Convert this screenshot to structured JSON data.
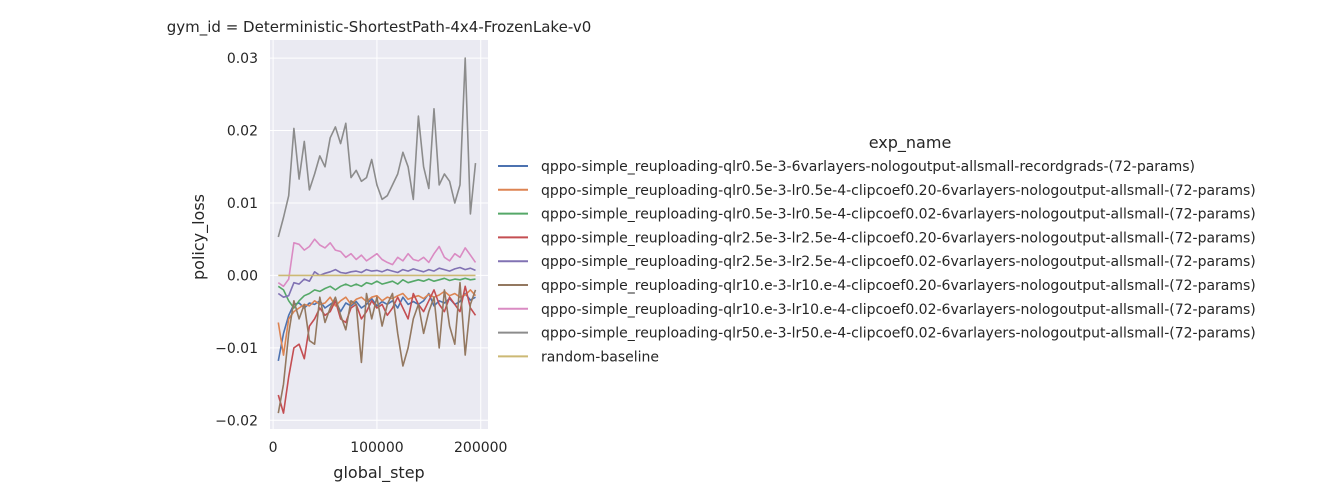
{
  "chart_data": {
    "type": "line",
    "title": "gym_id = Deterministic-ShortestPath-4x4-FrozenLake-v0",
    "xlabel": "global_step",
    "ylabel": "policy_loss",
    "xlim": [
      -3000,
      207000
    ],
    "ylim": [
      -0.0212,
      0.0325
    ],
    "xticks": [
      0,
      100000,
      200000
    ],
    "xtick_labels": [
      "0",
      "100000",
      "200000"
    ],
    "yticks": [
      -0.02,
      -0.01,
      0.0,
      0.01,
      0.02,
      0.03
    ],
    "ytick_labels": [
      "−0.02",
      "−0.01",
      "0.00",
      "0.01",
      "0.02",
      "0.03"
    ],
    "grid": true,
    "legend": {
      "title": "exp_name",
      "placement": "right"
    },
    "x": [
      5000,
      10000,
      15000,
      20000,
      25000,
      30000,
      35000,
      40000,
      45000,
      50000,
      55000,
      60000,
      65000,
      70000,
      75000,
      80000,
      85000,
      90000,
      95000,
      100000,
      105000,
      110000,
      115000,
      120000,
      125000,
      130000,
      135000,
      140000,
      145000,
      150000,
      155000,
      160000,
      165000,
      170000,
      175000,
      180000,
      185000,
      190000,
      195000
    ],
    "series": [
      {
        "name": "qppo-simple_reuploading-qlr0.5e-3-6varlayers-nologoutput-allsmall-recordgrads-(72-params)",
        "color": "#4c72b0",
        "values": [
          -0.0118,
          -0.008,
          -0.0055,
          -0.004,
          -0.0038,
          -0.0045,
          -0.0038,
          -0.004,
          -0.0035,
          -0.0045,
          -0.004,
          -0.0035,
          -0.005,
          -0.0038,
          -0.0042,
          -0.0036,
          -0.0045,
          -0.004,
          -0.0032,
          -0.0042,
          -0.0036,
          -0.004,
          -0.0035,
          -0.0045,
          -0.003,
          -0.004,
          -0.0036,
          -0.004,
          -0.0035,
          -0.0025,
          -0.0042,
          -0.0035,
          -0.0038,
          -0.0032,
          -0.004,
          -0.0036,
          -0.0025,
          -0.0034,
          -0.003
        ]
      },
      {
        "name": "qppo-simple_reuploading-qlr0.5e-3-lr0.5e-4-clipcoef0.20-6varlayers-nologoutput-allsmall-(72-params)",
        "color": "#dd8452",
        "values": [
          -0.0065,
          -0.011,
          -0.006,
          -0.005,
          -0.0045,
          -0.004,
          -0.0042,
          -0.0035,
          -0.004,
          -0.0038,
          -0.003,
          -0.0042,
          -0.0035,
          -0.003,
          -0.004,
          -0.0033,
          -0.003,
          -0.0036,
          -0.003,
          -0.0028,
          -0.0035,
          -0.003,
          -0.0032,
          -0.0028,
          -0.0025,
          -0.0033,
          -0.003,
          -0.0028,
          -0.0032,
          -0.0026,
          -0.003,
          -0.0027,
          -0.0022,
          -0.0028,
          -0.0025,
          -0.003,
          -0.0027,
          -0.002,
          -0.0028
        ]
      },
      {
        "name": "qppo-simple_reuploading-qlr0.5e-3-lr0.5e-4-clipcoef0.02-6varlayers-nologoutput-allsmall-(72-params)",
        "color": "#55a868",
        "values": [
          -0.0015,
          -0.002,
          -0.0035,
          -0.0045,
          -0.0035,
          -0.0028,
          -0.0025,
          -0.002,
          -0.0022,
          -0.0018,
          -0.0015,
          -0.002,
          -0.0015,
          -0.0012,
          -0.0015,
          -0.0012,
          -0.0015,
          -0.001,
          -0.0012,
          -0.0008,
          -0.0012,
          -0.001,
          -0.0008,
          -0.0012,
          -0.0006,
          -0.001,
          -0.0008,
          -0.0006,
          -0.0008,
          -0.0005,
          -0.0008,
          -0.0006,
          -0.0004,
          -0.0007,
          -0.0005,
          -0.0006,
          -0.0004,
          -0.0006,
          -0.0005
        ]
      },
      {
        "name": "qppo-simple_reuploading-qlr2.5e-3-lr2.5e-4-clipcoef0.20-6varlayers-nologoutput-allsmall-(72-params)",
        "color": "#c44e52",
        "values": [
          -0.0165,
          -0.019,
          -0.014,
          -0.01,
          -0.0095,
          -0.0115,
          -0.007,
          -0.006,
          -0.0045,
          -0.0055,
          -0.005,
          -0.0035,
          -0.006,
          -0.0065,
          -0.0045,
          -0.004,
          -0.006,
          -0.005,
          -0.0035,
          -0.0045,
          -0.004,
          -0.0055,
          -0.0045,
          -0.003,
          -0.0045,
          -0.006,
          -0.0025,
          -0.004,
          -0.005,
          -0.0035,
          -0.002,
          -0.004,
          -0.005,
          -0.003,
          -0.004,
          -0.005,
          -0.0015,
          -0.0045,
          -0.0055
        ]
      },
      {
        "name": "qppo-simple_reuploading-qlr2.5e-3-lr2.5e-4-clipcoef0.02-6varlayers-nologoutput-allsmall-(72-params)",
        "color": "#8172b3",
        "values": [
          -0.0025,
          -0.003,
          -0.0028,
          -0.001,
          -0.0012,
          -0.0005,
          -0.0008,
          0.0005,
          0.0,
          0.0003,
          0.0005,
          0.0008,
          0.0004,
          0.0003,
          0.0005,
          0.0006,
          0.0004,
          0.0008,
          0.0006,
          0.0007,
          0.0005,
          0.0008,
          0.0006,
          0.0004,
          0.0008,
          0.0006,
          0.0009,
          0.0007,
          0.0005,
          0.0008,
          0.0006,
          0.001,
          0.0008,
          0.0006,
          0.0009,
          0.0011,
          0.0008,
          0.001,
          0.0007
        ]
      },
      {
        "name": "qppo-simple_reuploading-qlr10.e-3-lr10.e-4-clipcoef0.20-6varlayers-nologoutput-allsmall-(72-params)",
        "color": "#937860",
        "values": [
          -0.019,
          -0.015,
          -0.008,
          -0.0035,
          -0.006,
          -0.004,
          -0.009,
          -0.0095,
          -0.003,
          -0.0065,
          -0.0045,
          -0.003,
          -0.0055,
          -0.0075,
          -0.0035,
          -0.004,
          -0.012,
          -0.0025,
          -0.006,
          -0.003,
          -0.007,
          -0.004,
          -0.0025,
          -0.008,
          -0.0125,
          -0.01,
          -0.006,
          -0.004,
          -0.008,
          -0.005,
          -0.003,
          -0.01,
          -0.002,
          -0.007,
          -0.0095,
          -0.001,
          -0.011,
          -0.004,
          -0.002
        ]
      },
      {
        "name": "qppo-simple_reuploading-qlr10.e-3-lr10.e-4-clipcoef0.02-6varlayers-nologoutput-allsmall-(72-params)",
        "color": "#da8bc3",
        "values": [
          -0.001,
          -0.0015,
          -0.0005,
          0.0045,
          0.0043,
          0.0035,
          0.004,
          0.005,
          0.0042,
          0.0038,
          0.0045,
          0.0035,
          0.0033,
          0.0025,
          0.003,
          0.0022,
          0.0028,
          0.002,
          0.0025,
          0.003,
          0.0022,
          0.0018,
          0.0015,
          0.0025,
          0.002,
          0.003,
          0.0022,
          0.002,
          0.0025,
          0.0018,
          0.003,
          0.004,
          0.0025,
          0.002,
          0.003,
          0.0025,
          0.0038,
          0.0028,
          0.0018
        ]
      },
      {
        "name": "qppo-simple_reuploading-qlr50.e-3-lr50.e-4-clipcoef0.02-6varlayers-nologoutput-allsmall-(72-params)",
        "color": "#8c8c8c",
        "values": [
          0.0053,
          0.008,
          0.011,
          0.0203,
          0.0133,
          0.0185,
          0.0118,
          0.014,
          0.0165,
          0.015,
          0.019,
          0.0205,
          0.0182,
          0.021,
          0.0135,
          0.0145,
          0.013,
          0.0135,
          0.016,
          0.0125,
          0.0105,
          0.011,
          0.0125,
          0.014,
          0.017,
          0.015,
          0.0105,
          0.022,
          0.015,
          0.012,
          0.023,
          0.0125,
          0.014,
          0.013,
          0.01,
          0.0125,
          0.03,
          0.0085,
          0.0155
        ]
      },
      {
        "name": "random-baseline",
        "color": "#ccb974",
        "values": [
          0.0,
          0.0,
          0.0,
          0.0,
          0.0,
          0.0,
          0.0,
          0.0,
          0.0,
          0.0,
          0.0,
          0.0,
          0.0,
          0.0,
          0.0,
          0.0,
          0.0,
          0.0,
          0.0,
          0.0,
          0.0,
          0.0,
          0.0,
          0.0,
          0.0,
          0.0,
          0.0,
          0.0,
          0.0,
          0.0,
          0.0,
          0.0,
          0.0,
          0.0,
          0.0,
          0.0,
          0.0,
          0.0,
          0.0
        ]
      }
    ]
  }
}
